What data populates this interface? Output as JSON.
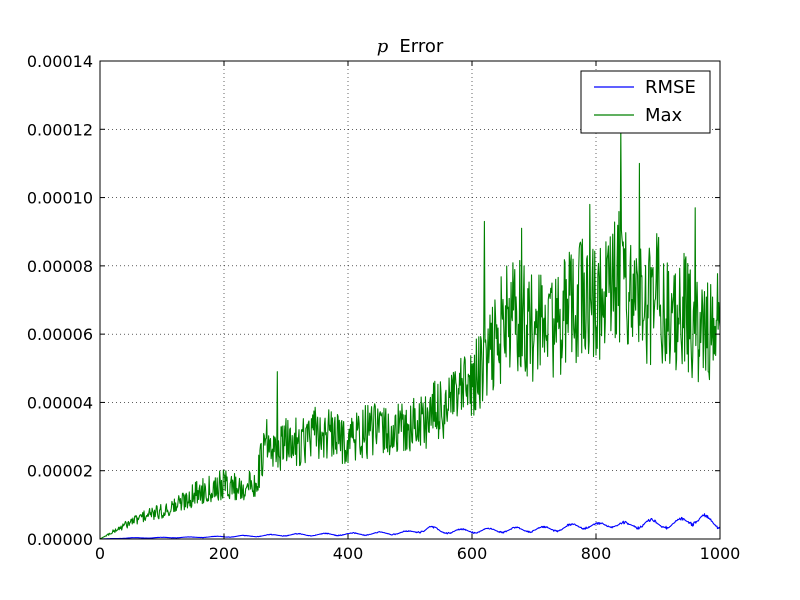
{
  "chart_data": {
    "type": "line",
    "title": {
      "variable": "p",
      "text": "Error"
    },
    "xlabel": "",
    "ylabel": "",
    "xlim": [
      0,
      1000
    ],
    "ylim": [
      0,
      0.00014
    ],
    "x_ticks": [
      0,
      200,
      400,
      600,
      800,
      1000
    ],
    "x_tick_labels": [
      "0",
      "200",
      "400",
      "600",
      "800",
      "1000"
    ],
    "y_ticks": [
      0,
      2e-05,
      4e-05,
      6e-05,
      8e-05,
      0.0001,
      0.00012,
      0.00014
    ],
    "y_tick_labels": [
      "0.00000",
      "0.00002",
      "0.00004",
      "0.00006",
      "0.00008",
      "0.00010",
      "0.00012",
      "0.00014"
    ],
    "grid": true,
    "legend_position": "top-right",
    "colors": {
      "RMSE": "#0000ff",
      "Max": "#008000"
    },
    "series": [
      {
        "name": "RMSE",
        "color": "#0000ff",
        "x": [
          0,
          50,
          100,
          150,
          200,
          250,
          300,
          350,
          400,
          450,
          500,
          530,
          550,
          600,
          650,
          700,
          750,
          780,
          800,
          820,
          850,
          880,
          900,
          930,
          950,
          970,
          990,
          1000
        ],
        "y": [
          0.0,
          3e-07,
          4e-07,
          5e-07,
          7e-07,
          9e-07,
          1.2e-06,
          1.3e-06,
          1.4e-06,
          1.6e-06,
          1.9e-06,
          3.2e-06,
          2.2e-06,
          2.4e-06,
          2.6e-06,
          2.8e-06,
          3.2e-06,
          4.2e-06,
          3.5e-06,
          4.5e-06,
          3.8e-06,
          4.8e-06,
          4.2e-06,
          4.5e-06,
          5.5e-06,
          6.2e-06,
          4.5e-06,
          4e-06
        ]
      },
      {
        "name": "Max",
        "color": "#008000",
        "x": [
          0,
          25,
          50,
          75,
          100,
          125,
          150,
          175,
          200,
          225,
          250,
          265,
          280,
          300,
          325,
          350,
          375,
          400,
          425,
          450,
          475,
          500,
          525,
          550,
          575,
          600,
          625,
          650,
          675,
          700,
          725,
          750,
          775,
          800,
          820,
          840,
          860,
          880,
          900,
          920,
          940,
          960,
          980,
          1000
        ],
        "y": [
          0.0,
          2.5e-06,
          5e-06,
          7e-06,
          8e-06,
          1e-05,
          1.3e-05,
          1.5e-05,
          1.6e-05,
          1.5e-05,
          1.6e-05,
          2.6e-05,
          2.5e-05,
          2.8e-05,
          2.9e-05,
          3.1e-05,
          3e-05,
          2.9e-05,
          3.1e-05,
          3.2e-05,
          3.1e-05,
          3.3e-05,
          3.5e-05,
          3.8e-05,
          4.1e-05,
          4.5e-05,
          5.2e-05,
          6.3e-05,
          6.6e-05,
          6.1e-05,
          6.3e-05,
          6.5e-05,
          7.1e-05,
          6.8e-05,
          7.2e-05,
          7.7e-05,
          7.3e-05,
          6.7e-05,
          7.2e-05,
          6.4e-05,
          6.8e-05,
          6e-05,
          6.1e-05,
          6.2e-05
        ]
      }
    ],
    "spikes": [
      {
        "series": "Max",
        "x": 269,
        "y": 3.5e-05
      },
      {
        "series": "Max",
        "x": 286,
        "y": 4.9e-05
      },
      {
        "series": "Max",
        "x": 620,
        "y": 9.3e-05
      },
      {
        "series": "Max",
        "x": 680,
        "y": 9.1e-05
      },
      {
        "series": "Max",
        "x": 790,
        "y": 9.8e-05
      },
      {
        "series": "Max",
        "x": 840,
        "y": 0.00012
      },
      {
        "series": "Max",
        "x": 870,
        "y": 0.00011
      },
      {
        "series": "Max",
        "x": 960,
        "y": 9.7e-05
      }
    ],
    "legend": [
      "RMSE",
      "Max"
    ]
  }
}
